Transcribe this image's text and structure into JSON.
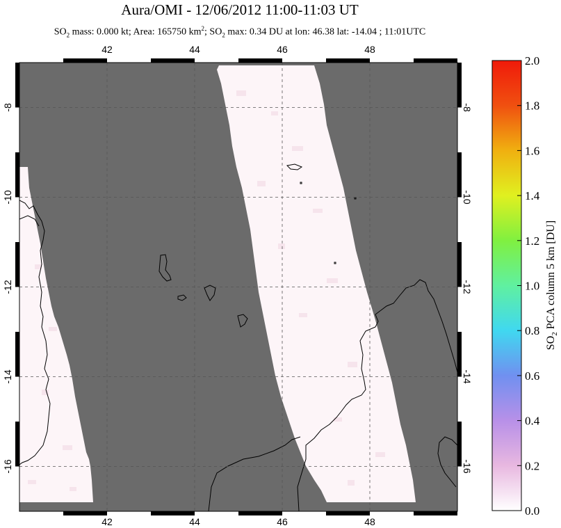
{
  "header": {
    "title": "Aura/OMI - 12/06/2012 11:00-11:03 UT",
    "subtitle_parts": {
      "so2_a": "SO",
      "sub_a": "2",
      "mass": " mass: 0.000 kt; Area: 165750 km",
      "sup": "2",
      "sep": "; SO",
      "sub_b": "2",
      "max": " max: 0.34 DU at lon: 46.38 lat: -14.04 ; 11:01UTC"
    }
  },
  "map": {
    "lon_range": [
      40.0,
      50.0
    ],
    "lat_range": [
      -17.0,
      -7.0
    ],
    "lon_ticks": [
      42,
      44,
      46,
      48
    ],
    "lat_ticks": [
      -8,
      -10,
      -12,
      -14,
      -16
    ],
    "lon_tick_labels": [
      "42",
      "44",
      "46",
      "48"
    ],
    "lat_tick_labels": [
      "-8",
      "-10",
      "-12",
      "-14",
      "-16"
    ],
    "background_color": "#6b6b6b",
    "swath_color": "#fdf5f8",
    "coast_color": "#000000",
    "grid": true
  },
  "colorbar": {
    "title": "SO2 PCA column 5 km [DU]",
    "title_parts": {
      "a": "SO",
      "sub": "2",
      "b": " PCA column 5 km [DU]"
    },
    "min": 0.0,
    "max": 2.0,
    "tick_labels": [
      "0.0",
      "0.2",
      "0.4",
      "0.6",
      "0.8",
      "1.0",
      "1.2",
      "1.4",
      "1.6",
      "1.8",
      "2.0"
    ],
    "colors": [
      "#ffffff",
      "#e8b8e0",
      "#b890e8",
      "#7090f0",
      "#40d8f0",
      "#60f0a0",
      "#80f040",
      "#e0f020",
      "#f0b010",
      "#f05010",
      "#f01a0a"
    ]
  }
}
